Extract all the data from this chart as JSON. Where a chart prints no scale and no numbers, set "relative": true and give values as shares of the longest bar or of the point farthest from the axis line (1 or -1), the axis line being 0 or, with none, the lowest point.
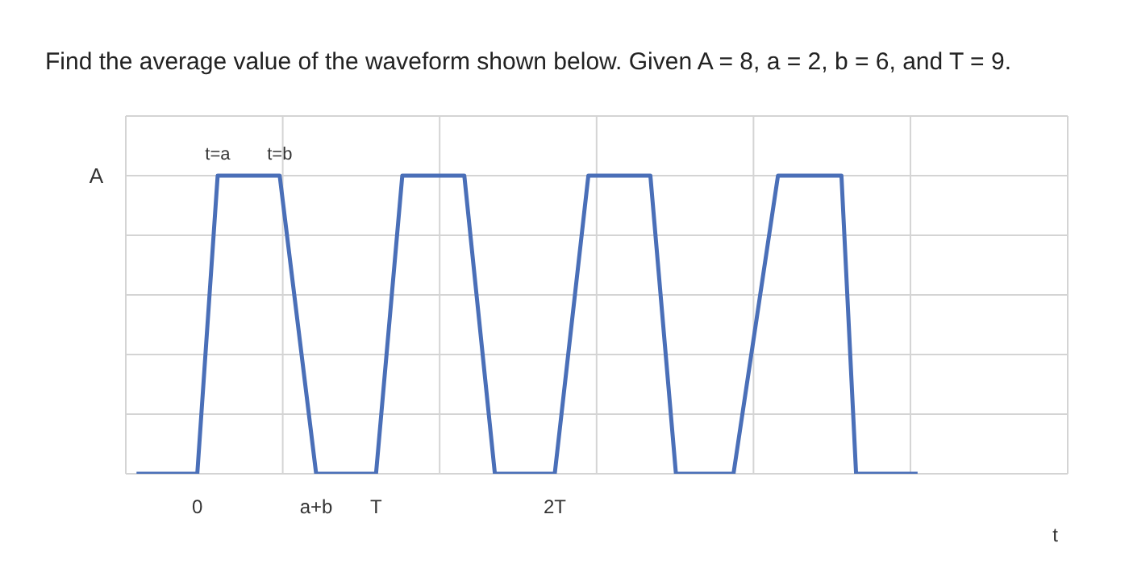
{
  "chart_data": {
    "type": "line",
    "title": "Find the average value of the waveform shown below. Given A = 8, a = 2, b = 6, and T = 9.",
    "xlabel": "t",
    "x": [
      -0.34,
      0,
      0.114,
      0.461,
      0.665,
      1.0,
      1.147,
      1.494,
      1.665,
      2.0,
      2.188,
      2.535,
      2.678,
      3.0,
      3.249,
      3.604,
      3.686,
      4.03
    ],
    "series": [
      {
        "color": "#4a6fb8",
        "values": [
          0,
          0,
          1,
          1,
          0,
          0,
          1,
          1,
          0,
          0,
          1,
          1,
          0,
          0,
          1,
          1,
          0,
          0
        ]
      }
    ],
    "xlim": [
      -0.4,
      4.87
    ],
    "xticks": [
      {
        "value": 0,
        "label": "0"
      },
      {
        "value": 0.478,
        "label": null
      },
      {
        "value": 0.665,
        "label": "a+b"
      },
      {
        "value": 1,
        "label": "T"
      },
      {
        "value": 1.356,
        "label": null
      },
      {
        "value": 2,
        "label": "2T"
      },
      {
        "value": 2.234,
        "label": null
      },
      {
        "value": 3.112,
        "label": null
      },
      {
        "value": 3.99,
        "label": null
      }
    ],
    "relative": true,
    "annotations": [
      "A",
      {
        "text": "t=a",
        "x": 0.114,
        "y": 1
      },
      {
        "text": "t=b",
        "x": 0.461,
        "y": 1
      }
    ],
    "grid": true,
    "marker": "none",
    "line_style": "solid"
  }
}
